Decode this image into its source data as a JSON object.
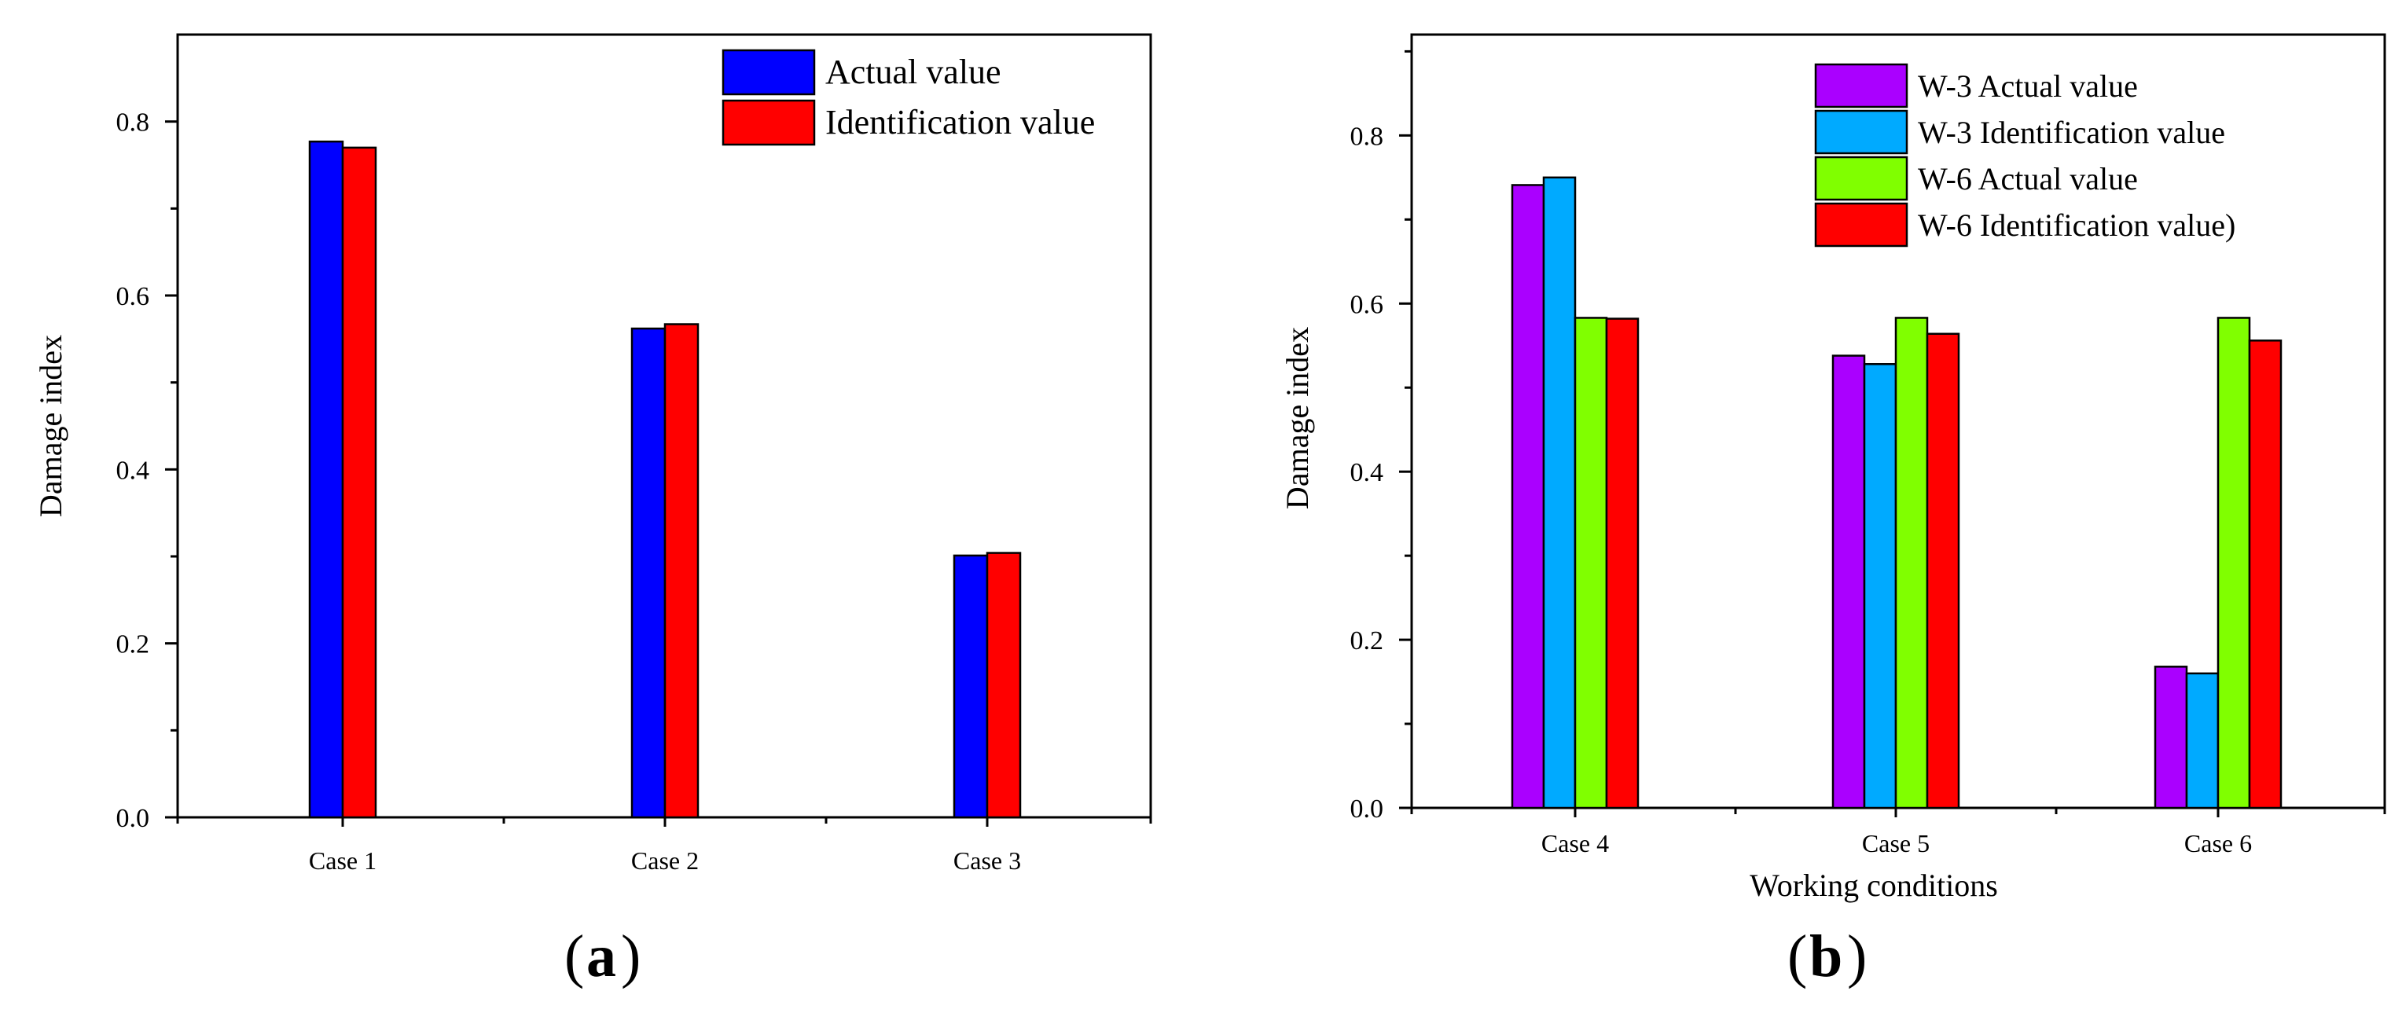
{
  "chart_data": [
    {
      "type": "bar",
      "panel": "a",
      "panel_label": "a",
      "categories": [
        "Case 1",
        "Case 2",
        "Case 3"
      ],
      "series": [
        {
          "name": "Actual value",
          "color": "#0000ff",
          "values": [
            0.777,
            0.562,
            0.301
          ]
        },
        {
          "name": "Identification value",
          "color": "#ff0000",
          "values": [
            0.77,
            0.567,
            0.304
          ]
        }
      ],
      "xlabel": "",
      "ylabel": "Damage index",
      "ylim": [
        0,
        0.9
      ],
      "yticks": [
        "0.0",
        "0.2",
        "0.4",
        "0.6",
        "0.8"
      ],
      "ytick_values": [
        0,
        0.2,
        0.4,
        0.6,
        0.8
      ],
      "legend": "top-right",
      "grid": false
    },
    {
      "type": "bar",
      "panel": "b",
      "panel_label": "b",
      "categories": [
        "Case 4",
        "Case 5",
        "Case 6"
      ],
      "series": [
        {
          "name": "W-3 Actual value",
          "color": "#aa00ff",
          "values": [
            0.741,
            0.538,
            0.168
          ]
        },
        {
          "name": "W-3 Identification value",
          "color": "#00aaff",
          "values": [
            0.75,
            0.528,
            0.16
          ]
        },
        {
          "name": "W-6 Actual value",
          "color": "#80ff00",
          "values": [
            0.583,
            0.583,
            0.583
          ]
        },
        {
          "name": "W-6 Identification value)",
          "color": "#ff0000",
          "values": [
            0.582,
            0.564,
            0.556
          ]
        }
      ],
      "xlabel": "Working conditions",
      "ylabel": "Damage index",
      "ylim": [
        0,
        0.92
      ],
      "yticks": [
        "0.0",
        "0.2",
        "0.4",
        "0.6",
        "0.8"
      ],
      "ytick_values": [
        0,
        0.2,
        0.4,
        0.6,
        0.8
      ],
      "legend": "top-right",
      "grid": false
    }
  ]
}
